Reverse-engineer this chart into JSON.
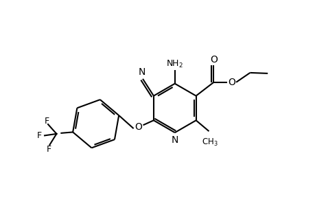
{
  "bg_color": "#ffffff",
  "line_color": "#000000",
  "line_width": 1.5,
  "figsize": [
    4.6,
    3.0
  ],
  "dpi": 100,
  "xlim": [
    0,
    9.2
  ],
  "ylim": [
    0,
    6.0
  ]
}
